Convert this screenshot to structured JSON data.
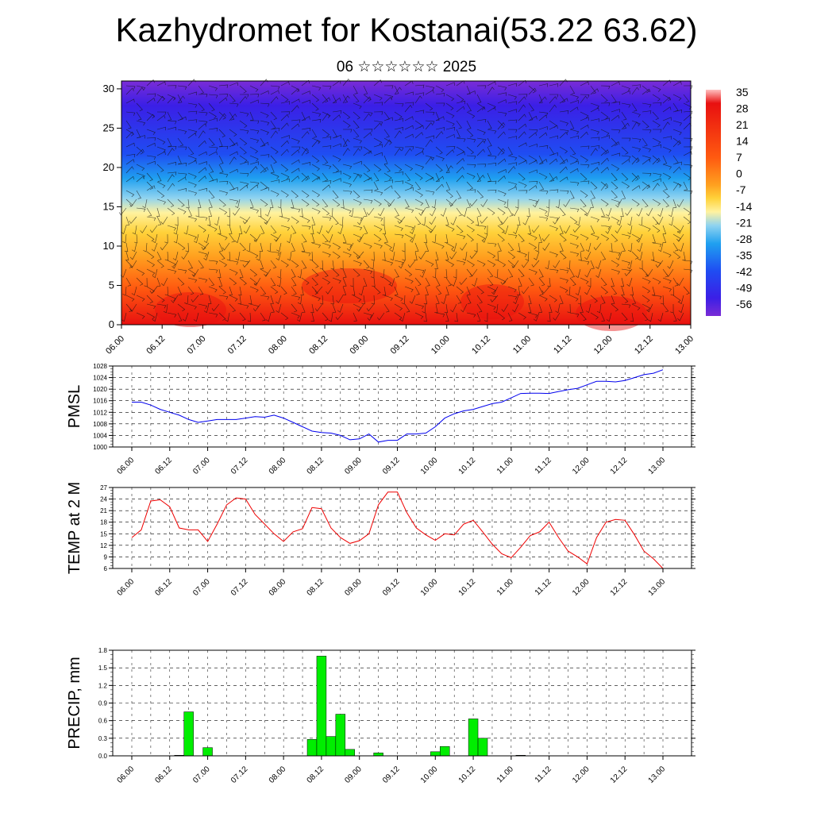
{
  "header": {
    "title": "Kazhydromet for Kostanai(53.22 63.62)",
    "subtitle": "06 ☆☆☆☆☆☆ 2025"
  },
  "colors": {
    "pmsl_line": "#0000ee",
    "temp_line": "#ee0000",
    "precip_bar": "#00ee00",
    "colormap": [
      "#7a2cd6",
      "#3b1fe6",
      "#1f4df2",
      "#1fa0f0",
      "#8fd3f0",
      "#fff2a0",
      "#ffd23a",
      "#ffa01f",
      "#ff5a10",
      "#e81010",
      "#ffc0c0"
    ]
  },
  "chart_data": [
    {
      "type": "heatmap",
      "title": "",
      "colorbar_ticks": [
        "35",
        "28",
        "21",
        "14",
        "7",
        "0",
        "-7",
        "-14",
        "-21",
        "-28",
        "-35",
        "-42",
        "-49",
        "-56"
      ],
      "y_ticks": [
        "0",
        "5",
        "10",
        "15",
        "20",
        "25",
        "30"
      ],
      "ylim": [
        0,
        31
      ],
      "x_ticks": [
        "06.00",
        "06.12",
        "07.00",
        "07.12",
        "08.00",
        "08.12",
        "09.00",
        "09.12",
        "10.00",
        "10.12",
        "11.00",
        "11.12",
        "12.00",
        "12.12",
        "13.00"
      ],
      "overlay": "wind barbs"
    },
    {
      "type": "line",
      "ylabel": "PMSL",
      "y_ticks": [
        "1000",
        "1004",
        "1008",
        "1012",
        "1016",
        "1020",
        "1024",
        "1028"
      ],
      "ylim": [
        1000,
        1028
      ],
      "x_ticks": [
        "06.00",
        "06.12",
        "07.00",
        "07.12",
        "08.00",
        "08.12",
        "09.00",
        "09.12",
        "10.00",
        "10.12",
        "11.00",
        "11.12",
        "12.00",
        "12.12",
        "13.00"
      ],
      "x": [
        0,
        3,
        6,
        9,
        12,
        15,
        18,
        21,
        24,
        27,
        30,
        33,
        36,
        39,
        42,
        45,
        48,
        51,
        54,
        57,
        60,
        63,
        66,
        69,
        72,
        75,
        78,
        81,
        84,
        87,
        90,
        93,
        96,
        99,
        102,
        105,
        108,
        111,
        114,
        117,
        120,
        123,
        126,
        129,
        132,
        135,
        138,
        141,
        144,
        147,
        150,
        153,
        156,
        159,
        162,
        165,
        168
      ],
      "series": [
        {
          "values": [
            1015.5,
            1015.5,
            1014.5,
            1013,
            1012,
            1011,
            1009.5,
            1008.5,
            1009,
            1009.5,
            1009.5,
            1009.5,
            1010,
            1010.5,
            1010.3,
            1011,
            1010,
            1008.5,
            1007,
            1005.5,
            1005,
            1004.8,
            1004,
            1002.5,
            1002.8,
            1004.5,
            1001.7,
            1002.3,
            1002.3,
            1004.5,
            1004.5,
            1004.8,
            1007,
            1010,
            1011.5,
            1012.5,
            1013,
            1014,
            1015,
            1015.5,
            1017,
            1018.5,
            1018.6,
            1018.6,
            1018.5,
            1019.2,
            1019.8,
            1020.3,
            1021.5,
            1022.7,
            1022.7,
            1022.5,
            1023,
            1024,
            1025,
            1025.5,
            1026.7
          ]
        }
      ]
    },
    {
      "type": "line",
      "ylabel": "TEMP at 2 M",
      "y_ticks": [
        "6",
        "9",
        "12",
        "15",
        "18",
        "21",
        "24",
        "27"
      ],
      "ylim": [
        6,
        27
      ],
      "x_ticks": [
        "06.00",
        "06.12",
        "07.00",
        "07.12",
        "08.00",
        "08.12",
        "09.00",
        "09.12",
        "10.00",
        "10.12",
        "11.00",
        "11.12",
        "12.00",
        "12.12",
        "13.00"
      ],
      "x": [
        0,
        3,
        6,
        9,
        12,
        15,
        18,
        21,
        24,
        27,
        30,
        33,
        36,
        39,
        42,
        45,
        48,
        51,
        54,
        57,
        60,
        63,
        66,
        69,
        72,
        75,
        78,
        81,
        84,
        87,
        90,
        93,
        96,
        99,
        102,
        105,
        108,
        111,
        114,
        117,
        120,
        123,
        126,
        129,
        132,
        135,
        138,
        141,
        144,
        147,
        150,
        153,
        156,
        159,
        162,
        165,
        168
      ],
      "series": [
        {
          "values": [
            14,
            16,
            23.5,
            23.8,
            22,
            16.5,
            16,
            16,
            13,
            17.5,
            22.5,
            24.3,
            24,
            20,
            17.5,
            15,
            13,
            15.5,
            16.3,
            21.8,
            21.5,
            16.5,
            14,
            12.5,
            13.2,
            15,
            22.5,
            25.8,
            25.8,
            20.5,
            16.5,
            14.7,
            13.3,
            15,
            14.7,
            17.5,
            18.5,
            15.5,
            12.3,
            9.8,
            8.8,
            11.5,
            14.5,
            15.5,
            18,
            14,
            10.5,
            9,
            7.2,
            14,
            18,
            18.7,
            18.5,
            14.7,
            10.5,
            8.5,
            6
          ]
        }
      ]
    },
    {
      "type": "bar",
      "ylabel": "PRECIP, mm",
      "y_ticks": [
        "0.0",
        "0.3",
        "0.6",
        "0.9",
        "1.2",
        "1.5",
        "1.8"
      ],
      "ylim": [
        0,
        1.8
      ],
      "x_ticks": [
        "06.00",
        "06.12",
        "07.00",
        "07.12",
        "08.00",
        "08.12",
        "09.00",
        "09.12",
        "10.00",
        "10.12",
        "11.00",
        "11.12",
        "12.00",
        "12.12",
        "13.00"
      ],
      "x": [
        0,
        3,
        6,
        9,
        12,
        15,
        18,
        21,
        24,
        27,
        30,
        33,
        36,
        39,
        42,
        45,
        48,
        51,
        54,
        57,
        60,
        63,
        66,
        69,
        72,
        75,
        78,
        81,
        84,
        87,
        90,
        93,
        96,
        99,
        102,
        105,
        108,
        111,
        114,
        117,
        120,
        123,
        126,
        129,
        132,
        135,
        138,
        141,
        144,
        147,
        150,
        153,
        156,
        159,
        162,
        165,
        168
      ],
      "series": [
        {
          "values": [
            0,
            0,
            0,
            0,
            0,
            0.01,
            0.75,
            0,
            0.14,
            0,
            0,
            0,
            0,
            0,
            0,
            0,
            0,
            0,
            0,
            0.28,
            1.7,
            0.33,
            0.71,
            0.11,
            0,
            0,
            0.05,
            0,
            0,
            0,
            0,
            0,
            0.07,
            0.16,
            0,
            0,
            0.63,
            0.3,
            0,
            0,
            0,
            0.01,
            0,
            0,
            0,
            0,
            0,
            0,
            0,
            0,
            0,
            0,
            0,
            0,
            0,
            0,
            0
          ]
        }
      ]
    }
  ]
}
